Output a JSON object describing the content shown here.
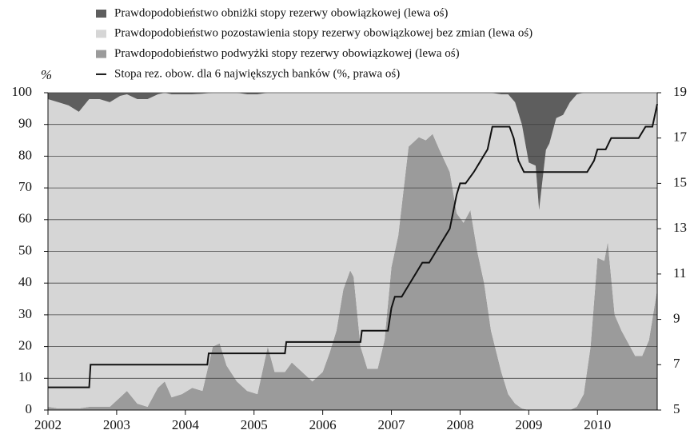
{
  "chart_data": {
    "type": "area",
    "y_label": "%",
    "x": [
      2002.0,
      2002.15,
      2002.3,
      2002.45,
      2002.6,
      2002.75,
      2002.9,
      2003.05,
      2003.15,
      2003.3,
      2003.45,
      2003.6,
      2003.7,
      2003.8,
      2003.95,
      2004.1,
      2004.25,
      2004.4,
      2004.5,
      2004.6,
      2004.75,
      2004.9,
      2005.05,
      2005.2,
      2005.3,
      2005.45,
      2005.55,
      2005.7,
      2005.85,
      2006.0,
      2006.1,
      2006.2,
      2006.3,
      2006.4,
      2006.45,
      2006.55,
      2006.65,
      2006.8,
      2006.9,
      2007.0,
      2007.1,
      2007.25,
      2007.4,
      2007.5,
      2007.6,
      2007.7,
      2007.85,
      2007.95,
      2008.05,
      2008.15,
      2008.25,
      2008.35,
      2008.45,
      2008.6,
      2008.7,
      2008.8,
      2008.9,
      2009.0,
      2009.1,
      2009.15,
      2009.25,
      2009.3,
      2009.4,
      2009.5,
      2009.6,
      2009.7,
      2009.8,
      2009.9,
      2010.0,
      2010.1,
      2010.15,
      2010.25,
      2010.35,
      2010.45,
      2010.55,
      2010.65,
      2010.75,
      2010.87
    ],
    "series": [
      {
        "name": "Prawdopodobieństwo podwyżki stopy rezerwy obowiązkowej (lewa oś)",
        "color": "#9b9b9b",
        "values": [
          1,
          0.5,
          0.5,
          0.5,
          1,
          1,
          1,
          4,
          6,
          2,
          1,
          7,
          9,
          4,
          5,
          7,
          6,
          20,
          21,
          14,
          9,
          6,
          5,
          20,
          12,
          12,
          15,
          12,
          9,
          12,
          18,
          25,
          38,
          44,
          42,
          20,
          13,
          13,
          22,
          45,
          55,
          83,
          86,
          85,
          87,
          82,
          75,
          62,
          59,
          63,
          50,
          40,
          25,
          12,
          5,
          2,
          0.5,
          0,
          0,
          0,
          0,
          0,
          0,
          0,
          0,
          1,
          5,
          20,
          48,
          47,
          53,
          30,
          25,
          21,
          17,
          17,
          22,
          38
        ]
      },
      {
        "name": "Prawdopodobieństwo pozostawienia stopy rezerwy obowiązkowej bez zmian (lewa oś)",
        "color": "#d6d6d6",
        "values": [
          97,
          96.5,
          95.5,
          93.5,
          97,
          97,
          96,
          95,
          93.5,
          96,
          97,
          92.5,
          91,
          95.5,
          94.5,
          92.5,
          93.7,
          80,
          79,
          86,
          91,
          93.5,
          94.5,
          80,
          88,
          88,
          85,
          88,
          91,
          88,
          82,
          75,
          62,
          56,
          58,
          80,
          87,
          87,
          78,
          55,
          45,
          17,
          14,
          15,
          13,
          18,
          25,
          38,
          41,
          37,
          50,
          60,
          75,
          87.5,
          94.5,
          95,
          89.5,
          78,
          77,
          63,
          82,
          84,
          92,
          93,
          97,
          98.5,
          95,
          80,
          52,
          53,
          47,
          70,
          75,
          79,
          83,
          83,
          78,
          62
        ]
      },
      {
        "name": "Prawdopodobieństwo obniżki stopy rezerwy obowiązkowej (lewa oś)",
        "color": "#5e5e5e",
        "values": [
          2,
          3,
          4,
          6,
          2,
          2,
          3,
          1,
          0.5,
          2,
          2,
          0.5,
          0,
          0.5,
          0.5,
          0.5,
          0.3,
          0,
          0,
          0,
          0,
          0.5,
          0.5,
          0,
          0,
          0,
          0,
          0,
          0,
          0,
          0,
          0,
          0,
          0,
          0,
          0,
          0,
          0,
          0,
          0,
          0,
          0,
          0,
          0,
          0,
          0,
          0,
          0,
          0,
          0,
          0,
          0,
          0,
          0.5,
          0.5,
          3,
          10,
          22,
          23,
          37,
          18,
          16,
          8,
          7,
          3,
          0.5,
          0,
          0,
          0,
          0,
          0,
          0,
          0,
          0,
          0,
          0,
          0,
          0
        ]
      },
      {
        "name": "Stopa rez. obow. dla 6 największych banków (%, prawa oś)",
        "type": "line",
        "axis": "y2",
        "color": "#111111",
        "x": [
          2002.0,
          2002.6,
          2002.62,
          2004.32,
          2004.34,
          2005.45,
          2005.47,
          2006.55,
          2006.57,
          2006.95,
          2007.0,
          2007.05,
          2007.15,
          2007.25,
          2007.35,
          2007.45,
          2007.55,
          2007.65,
          2007.75,
          2007.85,
          2007.95,
          2008.0,
          2008.08,
          2008.2,
          2008.3,
          2008.4,
          2008.47,
          2008.72,
          2008.78,
          2008.85,
          2008.93,
          2009.85,
          2009.95,
          2010.0,
          2010.12,
          2010.2,
          2010.6,
          2010.7,
          2010.8,
          2010.87
        ],
        "values": [
          6,
          6,
          7,
          7,
          7.5,
          7.5,
          8,
          8,
          8.5,
          8.5,
          9.5,
          10,
          10,
          10.5,
          11,
          11.5,
          11.5,
          12,
          12.5,
          13,
          14.5,
          15,
          15,
          15.5,
          16,
          16.5,
          17.5,
          17.5,
          17,
          16,
          15.5,
          15.5,
          16,
          16.5,
          16.5,
          17,
          17,
          17.5,
          17.5,
          18.5
        ]
      }
    ],
    "legend_order": [
      2,
      1,
      0,
      3
    ],
    "xlim": [
      2002,
      2010.87
    ],
    "xticks": [
      2002,
      2003,
      2004,
      2005,
      2006,
      2007,
      2008,
      2009,
      2010
    ],
    "ylim": [
      0,
      100
    ],
    "yticks": [
      0,
      10,
      20,
      30,
      40,
      50,
      60,
      70,
      80,
      90,
      100
    ],
    "y2lim": [
      5,
      19
    ],
    "y2ticks": [
      5,
      7,
      9,
      11,
      13,
      15,
      17,
      19
    ],
    "grid": true
  }
}
